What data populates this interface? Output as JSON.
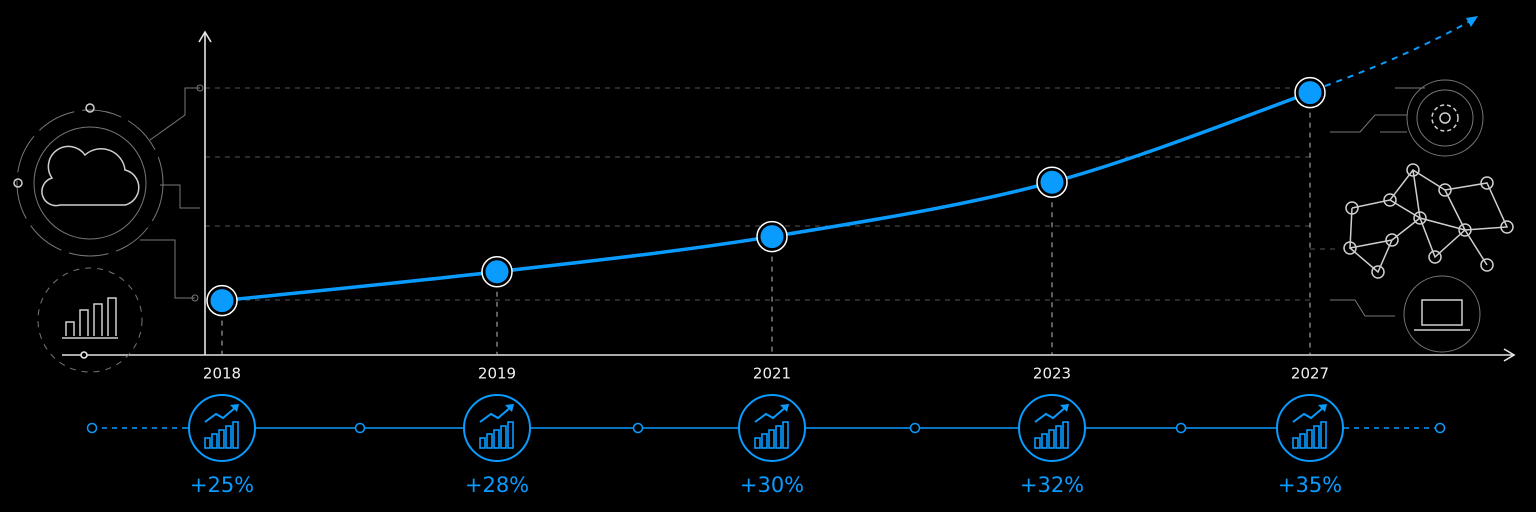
{
  "chart_data": {
    "type": "line",
    "categories": [
      "2018",
      "2019",
      "2021",
      "2023",
      "2027"
    ],
    "values": [
      17,
      26,
      37,
      54,
      82
    ],
    "color": "#0a9bff",
    "ylim": [
      0,
      100
    ],
    "growth": {
      "values": [
        25,
        28,
        30,
        32,
        35
      ],
      "value_labels": [
        "+25%",
        "+28%",
        "+30%",
        "+32%",
        "+35%"
      ]
    }
  }
}
